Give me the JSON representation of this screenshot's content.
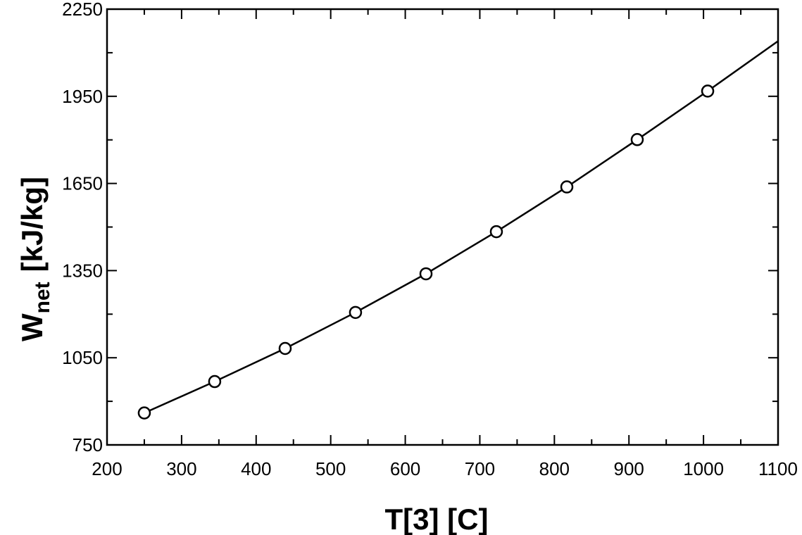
{
  "chart_data": {
    "type": "line",
    "title": "",
    "xlabel": "T[3]  [C]",
    "ylabel": {
      "main": "W",
      "subscript": "net",
      "unit": "[kJ/kg]"
    },
    "xlim": [
      200,
      1100
    ],
    "ylim": [
      750,
      2250
    ],
    "xticks": [
      "200",
      "300",
      "400",
      "500",
      "600",
      "700",
      "800",
      "900",
      "1000",
      "1100"
    ],
    "yticks": [
      "750",
      "1050",
      "1350",
      "1650",
      "1950",
      "2250"
    ],
    "x_minor_step": 50,
    "y_minor_step": 150,
    "grid": false,
    "legend": "none",
    "series": [
      {
        "x": [
          250,
          344.4,
          438.9,
          533.3,
          627.8,
          722.2,
          816.7,
          911.1,
          1005.6,
          1100
        ],
        "values": [
          860,
          968,
          1082,
          1206,
          1339,
          1484,
          1638,
          1801,
          1968,
          2140
        ],
        "markers": "circle",
        "marker_count": 9,
        "color": "#000000"
      }
    ]
  }
}
